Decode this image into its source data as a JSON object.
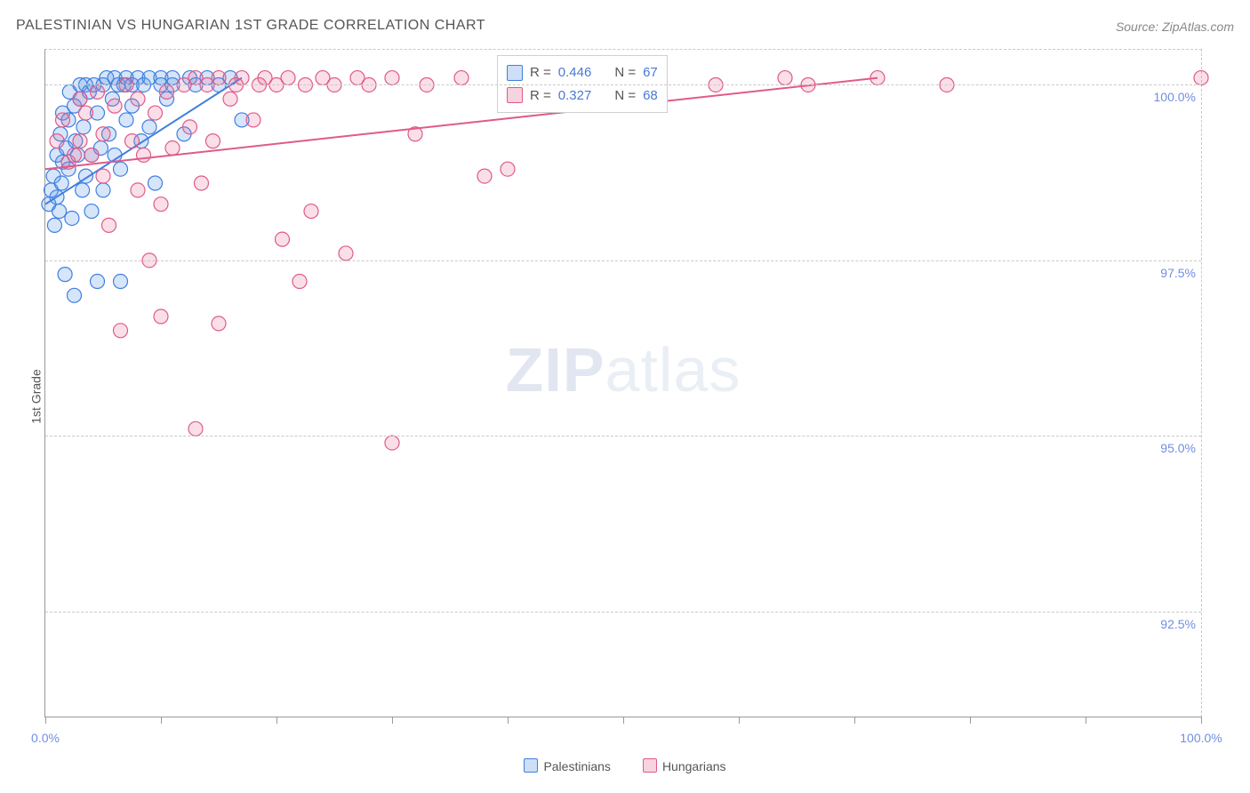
{
  "title": "PALESTINIAN VS HUNGARIAN 1ST GRADE CORRELATION CHART",
  "source": "Source: ZipAtlas.com",
  "ylabel": "1st Grade",
  "watermark": {
    "zip": "ZIP",
    "atlas": "atlas"
  },
  "chart": {
    "type": "scatter",
    "background_color": "#ffffff",
    "grid_color": "#c9c9c9",
    "axis_color": "#9a9a9a",
    "tick_label_color": "#6f8fe0",
    "xlim": [
      0,
      100
    ],
    "ylim": [
      91,
      100.5
    ],
    "xticks": [
      0,
      10,
      20,
      30,
      40,
      50,
      60,
      70,
      80,
      90,
      100
    ],
    "xtick_labels": {
      "0": "0.0%",
      "100": "100.0%"
    },
    "yticks": [
      92.5,
      95.0,
      97.5,
      100.0
    ],
    "ytick_labels": [
      "92.5%",
      "95.0%",
      "97.5%",
      "100.0%"
    ],
    "marker_radius": 8,
    "marker_fill_opacity": 0.25,
    "marker_stroke_width": 1.2,
    "line_stroke_width": 2,
    "series": [
      {
        "name": "Palestinians",
        "color": "#3f7fe0",
        "fill": "rgba(90,150,230,0.25)",
        "trend": {
          "x1": 0,
          "y1": 98.3,
          "x2": 17,
          "y2": 100.1
        },
        "points": [
          [
            0.3,
            98.3
          ],
          [
            0.5,
            98.5
          ],
          [
            0.7,
            98.7
          ],
          [
            0.8,
            98.0
          ],
          [
            1.0,
            99.0
          ],
          [
            1.0,
            98.4
          ],
          [
            1.2,
            98.2
          ],
          [
            1.3,
            99.3
          ],
          [
            1.4,
            98.6
          ],
          [
            1.5,
            98.9
          ],
          [
            1.5,
            99.6
          ],
          [
            1.7,
            97.3
          ],
          [
            1.8,
            99.1
          ],
          [
            2.0,
            99.5
          ],
          [
            2.0,
            98.8
          ],
          [
            2.1,
            99.9
          ],
          [
            2.3,
            98.1
          ],
          [
            2.5,
            99.7
          ],
          [
            2.5,
            97.0
          ],
          [
            2.6,
            99.2
          ],
          [
            2.8,
            99.0
          ],
          [
            3.0,
            99.8
          ],
          [
            3.0,
            100.0
          ],
          [
            3.2,
            98.5
          ],
          [
            3.3,
            99.4
          ],
          [
            3.5,
            98.7
          ],
          [
            3.5,
            100.0
          ],
          [
            3.8,
            99.9
          ],
          [
            4.0,
            99.0
          ],
          [
            4.0,
            98.2
          ],
          [
            4.2,
            100.0
          ],
          [
            4.5,
            99.6
          ],
          [
            4.5,
            97.2
          ],
          [
            4.8,
            99.1
          ],
          [
            5.0,
            100.0
          ],
          [
            5.0,
            98.5
          ],
          [
            5.3,
            100.1
          ],
          [
            5.5,
            99.3
          ],
          [
            5.8,
            99.8
          ],
          [
            6.0,
            100.1
          ],
          [
            6.0,
            99.0
          ],
          [
            6.3,
            100.0
          ],
          [
            6.5,
            98.8
          ],
          [
            6.5,
            97.2
          ],
          [
            6.8,
            100.0
          ],
          [
            7.0,
            99.5
          ],
          [
            7.0,
            100.1
          ],
          [
            7.5,
            99.7
          ],
          [
            7.5,
            100.0
          ],
          [
            8.0,
            100.1
          ],
          [
            8.3,
            99.2
          ],
          [
            8.5,
            100.0
          ],
          [
            9.0,
            100.1
          ],
          [
            9.0,
            99.4
          ],
          [
            9.5,
            98.6
          ],
          [
            10.0,
            100.0
          ],
          [
            10.0,
            100.1
          ],
          [
            10.5,
            99.8
          ],
          [
            11.0,
            100.0
          ],
          [
            11.0,
            100.1
          ],
          [
            12.0,
            99.3
          ],
          [
            12.5,
            100.1
          ],
          [
            13.0,
            100.0
          ],
          [
            14.0,
            100.1
          ],
          [
            15.0,
            100.0
          ],
          [
            16.0,
            100.1
          ],
          [
            17.0,
            99.5
          ]
        ]
      },
      {
        "name": "Hungarians",
        "color": "#e05a8a",
        "fill": "rgba(230,110,150,0.22)",
        "trend": {
          "x1": 0,
          "y1": 98.8,
          "x2": 72,
          "y2": 100.1
        },
        "points": [
          [
            1.0,
            99.2
          ],
          [
            1.5,
            99.5
          ],
          [
            2.0,
            98.9
          ],
          [
            2.5,
            99.0
          ],
          [
            3.0,
            99.8
          ],
          [
            3.0,
            99.2
          ],
          [
            3.5,
            99.6
          ],
          [
            4.0,
            99.0
          ],
          [
            4.5,
            99.9
          ],
          [
            5.0,
            98.7
          ],
          [
            5.0,
            99.3
          ],
          [
            5.5,
            98.0
          ],
          [
            6.0,
            99.7
          ],
          [
            6.5,
            96.5
          ],
          [
            7.0,
            100.0
          ],
          [
            7.5,
            99.2
          ],
          [
            8.0,
            98.5
          ],
          [
            8.0,
            99.8
          ],
          [
            8.5,
            99.0
          ],
          [
            9.0,
            97.5
          ],
          [
            9.5,
            99.6
          ],
          [
            10.0,
            98.3
          ],
          [
            10.0,
            96.7
          ],
          [
            10.5,
            99.9
          ],
          [
            11.0,
            99.1
          ],
          [
            12.0,
            100.0
          ],
          [
            12.5,
            99.4
          ],
          [
            13.0,
            100.1
          ],
          [
            13.0,
            95.1
          ],
          [
            13.5,
            98.6
          ],
          [
            14.0,
            100.0
          ],
          [
            14.5,
            99.2
          ],
          [
            15.0,
            100.1
          ],
          [
            15.0,
            96.6
          ],
          [
            16.0,
            99.8
          ],
          [
            16.5,
            100.0
          ],
          [
            17.0,
            100.1
          ],
          [
            18.0,
            99.5
          ],
          [
            18.5,
            100.0
          ],
          [
            19.0,
            100.1
          ],
          [
            20.0,
            100.0
          ],
          [
            20.5,
            97.8
          ],
          [
            21.0,
            100.1
          ],
          [
            22.0,
            97.2
          ],
          [
            22.5,
            100.0
          ],
          [
            23.0,
            98.2
          ],
          [
            24.0,
            100.1
          ],
          [
            25.0,
            100.0
          ],
          [
            26.0,
            97.6
          ],
          [
            27.0,
            100.1
          ],
          [
            28.0,
            100.0
          ],
          [
            30.0,
            100.1
          ],
          [
            30.0,
            94.9
          ],
          [
            32.0,
            99.3
          ],
          [
            33.0,
            100.0
          ],
          [
            36.0,
            100.1
          ],
          [
            38.0,
            98.7
          ],
          [
            40.0,
            98.8
          ],
          [
            42.0,
            100.0
          ],
          [
            45.0,
            100.1
          ],
          [
            48.0,
            100.0
          ],
          [
            52.0,
            100.1
          ],
          [
            58.0,
            100.0
          ],
          [
            64.0,
            100.1
          ],
          [
            66.0,
            100.0
          ],
          [
            72.0,
            100.1
          ],
          [
            78.0,
            100.0
          ],
          [
            100.0,
            100.1
          ]
        ]
      }
    ]
  },
  "stats": {
    "rows": [
      {
        "sw_fill": "rgba(90,150,230,0.30)",
        "sw_stroke": "#3f7fe0",
        "r_label": "R =",
        "r_val": "0.446",
        "n_label": "N =",
        "n_val": "67"
      },
      {
        "sw_fill": "rgba(230,110,150,0.30)",
        "sw_stroke": "#e05a8a",
        "r_label": "R =",
        "r_val": "0.327",
        "n_label": "N =",
        "n_val": "68"
      }
    ]
  },
  "legend": {
    "items": [
      {
        "sw_fill": "rgba(90,150,230,0.30)",
        "sw_stroke": "#3f7fe0",
        "label": "Palestinians"
      },
      {
        "sw_fill": "rgba(230,110,150,0.30)",
        "sw_stroke": "#e05a8a",
        "label": "Hungarians"
      }
    ]
  }
}
